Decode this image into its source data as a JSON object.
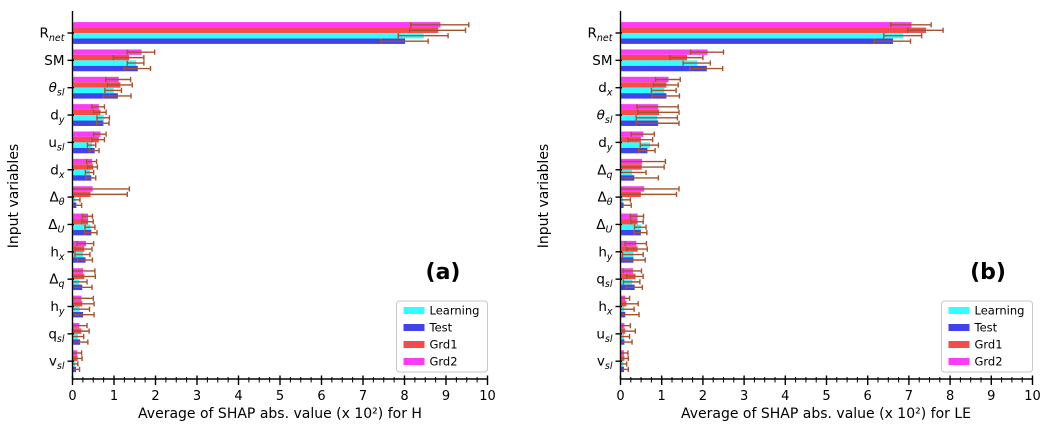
{
  "figure": {
    "background": "#ffffff",
    "axis_color": "#000000",
    "errorbar_color": "#A5522F",
    "series_colors": {
      "Learning": "#2FFFFF",
      "Test": "#4242EB",
      "Grd1": "#F74A4A",
      "Grd2": "#FA3CF5"
    }
  },
  "legend": {
    "entries": [
      "Learning",
      "Test",
      "Grd1",
      "Grd2"
    ],
    "position": "lower right"
  },
  "chart_data": [
    {
      "type": "bar",
      "orientation": "horizontal",
      "annotation": "(a)",
      "xlabel": "Average of SHAP abs. value (x 10²) for H",
      "ylabel": "Input variables",
      "xlim": [
        0,
        10
      ],
      "xticks": [
        0,
        1,
        2,
        3,
        4,
        5,
        6,
        7,
        8,
        9,
        10
      ],
      "grid": false,
      "bar_order_top_to_bottom": [
        "Grd2",
        "Grd1",
        "Learning",
        "Test"
      ],
      "categories": [
        {
          "base": "R",
          "sub": "net",
          "italic": false
        },
        {
          "base": "SM",
          "sub": "",
          "italic": false
        },
        {
          "base": "θ",
          "sub": "sl",
          "italic": true
        },
        {
          "base": "d",
          "sub": "y",
          "italic": false
        },
        {
          "base": "u",
          "sub": "sl",
          "italic": false
        },
        {
          "base": "d",
          "sub": "x",
          "italic": false
        },
        {
          "base": "Δ",
          "sub": "θ",
          "italic": false
        },
        {
          "base": "Δ",
          "sub": "U",
          "italic": false
        },
        {
          "base": "h",
          "sub": "x",
          "italic": false
        },
        {
          "base": "Δ",
          "sub": "q",
          "italic": false
        },
        {
          "base": "h",
          "sub": "y",
          "italic": false
        },
        {
          "base": "q",
          "sub": "sl",
          "italic": false
        },
        {
          "base": "v",
          "sub": "sl",
          "italic": false
        }
      ],
      "series": [
        {
          "name": "Learning",
          "values": [
            8.45,
            1.52,
            0.98,
            0.74,
            0.46,
            0.41,
            0.06,
            0.42,
            0.24,
            0.15,
            0.16,
            0.12,
            0.05
          ],
          "errors": [
            0.6,
            0.2,
            0.2,
            0.15,
            0.1,
            0.1,
            0.12,
            0.12,
            0.18,
            0.2,
            0.25,
            0.15,
            0.08
          ]
        },
        {
          "name": "Test",
          "values": [
            8.0,
            1.56,
            1.08,
            0.73,
            0.52,
            0.44,
            0.08,
            0.44,
            0.3,
            0.22,
            0.24,
            0.17,
            0.07
          ],
          "errors": [
            0.57,
            0.32,
            0.33,
            0.15,
            0.12,
            0.12,
            0.14,
            0.15,
            0.18,
            0.25,
            0.28,
            0.2,
            0.1
          ]
        },
        {
          "name": "Grd1",
          "values": [
            8.8,
            1.35,
            1.14,
            0.66,
            0.62,
            0.48,
            0.42,
            0.36,
            0.27,
            0.27,
            0.22,
            0.2,
            0.11
          ],
          "errors": [
            0.67,
            0.37,
            0.3,
            0.15,
            0.15,
            0.12,
            0.9,
            0.14,
            0.2,
            0.28,
            0.3,
            0.2,
            0.12
          ]
        },
        {
          "name": "Grd2",
          "values": [
            8.85,
            1.65,
            1.1,
            0.62,
            0.66,
            0.46,
            0.47,
            0.36,
            0.31,
            0.24,
            0.2,
            0.15,
            0.1
          ],
          "errors": [
            0.7,
            0.33,
            0.3,
            0.15,
            0.15,
            0.12,
            0.9,
            0.12,
            0.2,
            0.3,
            0.3,
            0.2,
            0.12
          ]
        }
      ]
    },
    {
      "type": "bar",
      "orientation": "horizontal",
      "annotation": "(b)",
      "xlabel": "Average of SHAP abs. value (x 10²) for LE",
      "ylabel": "Input variables",
      "xlim": [
        0,
        10
      ],
      "xticks": [
        0,
        1,
        2,
        3,
        4,
        5,
        6,
        7,
        8,
        9,
        10
      ],
      "grid": false,
      "bar_order_top_to_bottom": [
        "Grd2",
        "Grd1",
        "Learning",
        "Test"
      ],
      "categories": [
        {
          "base": "R",
          "sub": "net",
          "italic": false
        },
        {
          "base": "SM",
          "sub": "",
          "italic": false
        },
        {
          "base": "d",
          "sub": "x",
          "italic": false
        },
        {
          "base": "θ",
          "sub": "sl",
          "italic": true
        },
        {
          "base": "d",
          "sub": "y",
          "italic": false
        },
        {
          "base": "Δ",
          "sub": "q",
          "italic": false
        },
        {
          "base": "Δ",
          "sub": "θ",
          "italic": false
        },
        {
          "base": "Δ",
          "sub": "U",
          "italic": false
        },
        {
          "base": "h",
          "sub": "y",
          "italic": false
        },
        {
          "base": "q",
          "sub": "sl",
          "italic": false
        },
        {
          "base": "h",
          "sub": "x",
          "italic": false
        },
        {
          "base": "u",
          "sub": "sl",
          "italic": false
        },
        {
          "base": "v",
          "sub": "sl",
          "italic": false
        }
      ],
      "series": [
        {
          "name": "Learning",
          "values": [
            6.85,
            1.85,
            1.05,
            0.88,
            0.7,
            0.27,
            0.05,
            0.48,
            0.3,
            0.27,
            0.08,
            0.07,
            0.05
          ],
          "errors": [
            0.46,
            0.33,
            0.3,
            0.5,
            0.22,
            0.35,
            0.19,
            0.14,
            0.25,
            0.2,
            0.25,
            0.15,
            0.1
          ]
        },
        {
          "name": "Test",
          "values": [
            6.6,
            2.08,
            1.1,
            0.9,
            0.64,
            0.32,
            0.06,
            0.48,
            0.3,
            0.33,
            0.1,
            0.08,
            0.07
          ],
          "errors": [
            0.44,
            0.4,
            0.33,
            0.52,
            0.2,
            0.6,
            0.2,
            0.16,
            0.3,
            0.2,
            0.35,
            0.2,
            0.12
          ]
        },
        {
          "name": "Grd1",
          "values": [
            7.4,
            1.6,
            1.1,
            0.92,
            0.48,
            0.5,
            0.48,
            0.4,
            0.4,
            0.35,
            0.13,
            0.1,
            0.08
          ],
          "errors": [
            0.43,
            0.4,
            0.3,
            0.5,
            0.3,
            0.56,
            0.88,
            0.15,
            0.25,
            0.2,
            0.3,
            0.26,
            0.11
          ]
        },
        {
          "name": "Grd2",
          "values": [
            7.05,
            2.1,
            1.15,
            0.9,
            0.54,
            0.51,
            0.56,
            0.4,
            0.37,
            0.29,
            0.1,
            0.08,
            0.07
          ],
          "errors": [
            0.49,
            0.4,
            0.3,
            0.5,
            0.28,
            0.58,
            0.86,
            0.16,
            0.26,
            0.22,
            0.12,
            0.16,
            0.11
          ]
        }
      ]
    }
  ]
}
